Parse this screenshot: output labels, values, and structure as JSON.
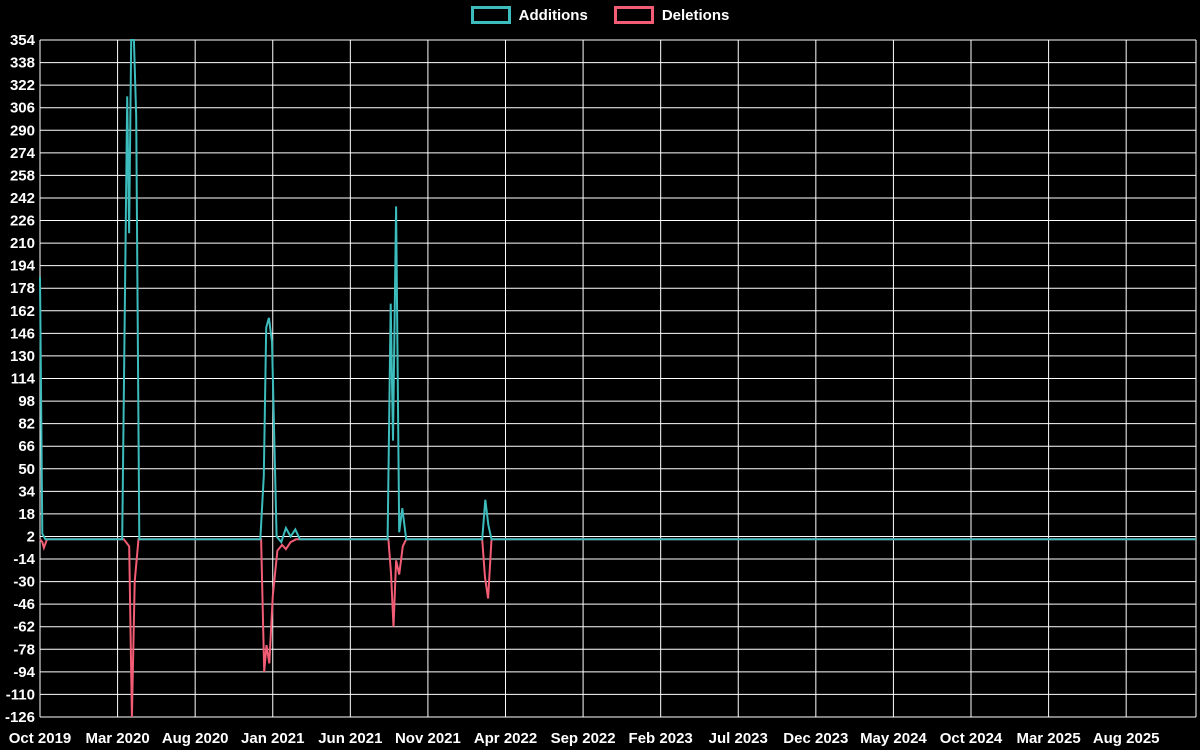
{
  "chart_data": {
    "type": "line",
    "title": "",
    "background_color": "#000000",
    "grid": true,
    "grid_color": "#ffffff",
    "text_color": "#ffffff",
    "legend_position": "top-center",
    "legend": [
      {
        "name": "Additions",
        "color": "#3cbcbc"
      },
      {
        "name": "Deletions",
        "color": "#f25c74"
      }
    ],
    "x_unit": "months since Oct 2019",
    "xlim": [
      0,
      74.5
    ],
    "ylim": [
      -126,
      354
    ],
    "y_tick_step": 16,
    "y_ticks": [
      354,
      338,
      322,
      306,
      290,
      274,
      258,
      242,
      226,
      210,
      194,
      178,
      162,
      146,
      130,
      114,
      98,
      82,
      66,
      50,
      34,
      18,
      2,
      -14,
      -30,
      -46,
      -62,
      -78,
      -94,
      -110,
      -126
    ],
    "x_ticks": [
      {
        "t": 0,
        "label": "Oct 2019"
      },
      {
        "t": 5,
        "label": "Mar 2020"
      },
      {
        "t": 10,
        "label": "Aug 2020"
      },
      {
        "t": 15,
        "label": "Jan 2021"
      },
      {
        "t": 20,
        "label": "Jun 2021"
      },
      {
        "t": 25,
        "label": "Nov 2021"
      },
      {
        "t": 30,
        "label": "Apr 2022"
      },
      {
        "t": 35,
        "label": "Sep 2022"
      },
      {
        "t": 40,
        "label": "Feb 2023"
      },
      {
        "t": 45,
        "label": "Jul 2023"
      },
      {
        "t": 50,
        "label": "Dec 2023"
      },
      {
        "t": 55,
        "label": "May 2024"
      },
      {
        "t": 60,
        "label": "Oct 2024"
      },
      {
        "t": 65,
        "label": "Mar 2025"
      },
      {
        "t": 70,
        "label": "Aug 2025"
      }
    ],
    "series": [
      {
        "name": "Additions",
        "color": "#3cbcbc",
        "points": [
          [
            0,
            186
          ],
          [
            0.15,
            4
          ],
          [
            0.35,
            0
          ],
          [
            5.3,
            0
          ],
          [
            5.62,
            314
          ],
          [
            5.74,
            217
          ],
          [
            5.88,
            354
          ],
          [
            6.05,
            354
          ],
          [
            6.2,
            300
          ],
          [
            6.4,
            0
          ],
          [
            14.2,
            0
          ],
          [
            14.42,
            45
          ],
          [
            14.58,
            150
          ],
          [
            14.75,
            157
          ],
          [
            14.95,
            140
          ],
          [
            15.25,
            2
          ],
          [
            15.55,
            -2
          ],
          [
            15.85,
            8
          ],
          [
            16.15,
            2
          ],
          [
            16.45,
            7
          ],
          [
            16.75,
            0
          ],
          [
            22.4,
            0
          ],
          [
            22.6,
            167
          ],
          [
            22.75,
            70
          ],
          [
            22.95,
            236
          ],
          [
            23.15,
            5
          ],
          [
            23.35,
            22
          ],
          [
            23.6,
            0
          ],
          [
            28.5,
            0
          ],
          [
            28.7,
            28
          ],
          [
            28.9,
            10
          ],
          [
            29.1,
            0
          ],
          [
            74.5,
            0
          ]
        ]
      },
      {
        "name": "Deletions",
        "color": "#f25c74",
        "points": [
          [
            0,
            0
          ],
          [
            0.15,
            -2
          ],
          [
            0.25,
            -6
          ],
          [
            0.45,
            0
          ],
          [
            5.4,
            0
          ],
          [
            5.75,
            -5
          ],
          [
            5.92,
            -126
          ],
          [
            6.1,
            -30
          ],
          [
            6.35,
            0
          ],
          [
            14.25,
            0
          ],
          [
            14.45,
            -94
          ],
          [
            14.6,
            -75
          ],
          [
            14.78,
            -88
          ],
          [
            15.0,
            -40
          ],
          [
            15.3,
            -8
          ],
          [
            15.6,
            -4
          ],
          [
            15.85,
            -7
          ],
          [
            16.15,
            -2
          ],
          [
            16.5,
            0
          ],
          [
            22.45,
            0
          ],
          [
            22.62,
            -24
          ],
          [
            22.78,
            -62
          ],
          [
            22.95,
            -15
          ],
          [
            23.15,
            -25
          ],
          [
            23.38,
            -5
          ],
          [
            23.6,
            0
          ],
          [
            28.5,
            0
          ],
          [
            28.68,
            -27
          ],
          [
            28.88,
            -42
          ],
          [
            29.1,
            0
          ],
          [
            74.5,
            0
          ]
        ]
      }
    ]
  }
}
